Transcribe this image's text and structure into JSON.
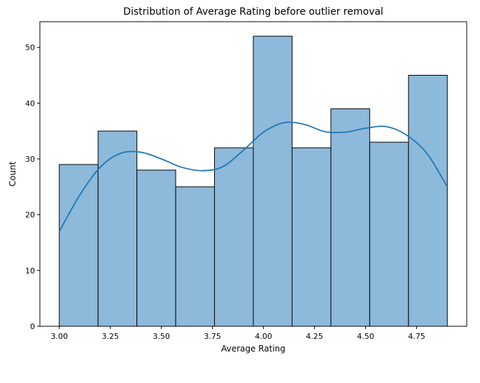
{
  "chart_data": {
    "type": "bar",
    "subtype": "histogram-with-kde",
    "title": "Distribution of Average Rating before outlier removal",
    "xlabel": "Average Rating",
    "ylabel": "Count",
    "xlim": [
      2.905,
      4.995
    ],
    "ylim": [
      0,
      54.6
    ],
    "xticks": [
      3.0,
      3.25,
      3.5,
      3.75,
      4.0,
      4.25,
      4.5,
      4.75
    ],
    "xtick_labels": [
      "3.00",
      "3.25",
      "3.50",
      "3.75",
      "4.00",
      "4.25",
      "4.50",
      "4.75"
    ],
    "yticks": [
      0,
      10,
      20,
      30,
      40,
      50
    ],
    "ytick_labels": [
      "0",
      "10",
      "20",
      "30",
      "40",
      "50"
    ],
    "bin_edges": [
      3.0,
      3.19,
      3.38,
      3.57,
      3.76,
      3.95,
      4.14,
      4.33,
      4.52,
      4.71,
      4.9
    ],
    "values": [
      29,
      35,
      28,
      25,
      32,
      52,
      32,
      39,
      33,
      45
    ],
    "kde": {
      "x": [
        3.0,
        3.1,
        3.2,
        3.3,
        3.4,
        3.5,
        3.6,
        3.7,
        3.8,
        3.9,
        4.0,
        4.1,
        4.2,
        4.3,
        4.4,
        4.5,
        4.6,
        4.7,
        4.8,
        4.9
      ],
      "y": [
        17,
        23.5,
        28.5,
        31.0,
        31.2,
        30.0,
        28.5,
        27.9,
        28.6,
        31.5,
        34.8,
        36.5,
        36.2,
        34.9,
        34.8,
        35.5,
        35.8,
        34.3,
        31.0,
        25.0
      ]
    },
    "colors": {
      "bar_fill": "#8db9da",
      "bar_edge": "#000000",
      "kde_line": "#1f77b4"
    },
    "grid": false,
    "legend": "none"
  }
}
